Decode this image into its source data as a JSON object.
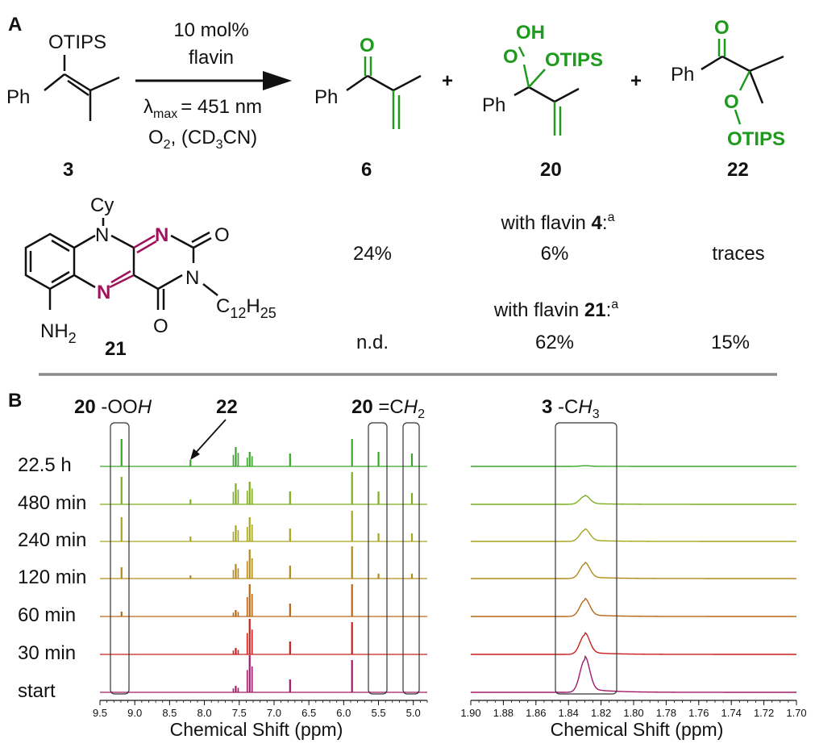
{
  "colors": {
    "green": "#1f9a1f",
    "purple": "#a0135c",
    "black": "#111111",
    "divider": "#8a8a8a",
    "trace_22_5h": "#3aa52a",
    "trace_480": "#7cae1e",
    "trace_240": "#a7a61c",
    "trace_120": "#b38a1a",
    "trace_60": "#b86616",
    "trace_30": "#c8201e",
    "trace_start": "#a01a6a"
  },
  "panelA": {
    "label": "A",
    "reactant": {
      "otips": "OTIPS",
      "ph": "Ph",
      "number": "3"
    },
    "conditions": {
      "line1": "10 mol%",
      "line2": "flavin",
      "lambda_symbol": "λ",
      "lambda_sub": "max",
      "lambda_value": "= 451 nm",
      "o2": "O",
      "o2_sub": "2",
      "solvent_open": ", (CD",
      "solvent_sub": "3",
      "solvent_close": "CN)"
    },
    "plus1": "+",
    "plus2": "+",
    "product6": {
      "o": "O",
      "ph": "Ph",
      "number": "6"
    },
    "product20": {
      "oh": "OH",
      "o": "O",
      "otips": "OTIPS",
      "ph": "Ph",
      "number": "20"
    },
    "product22": {
      "o_top": "O",
      "ph": "Ph",
      "o": "O",
      "otips": "OTIPS",
      "number": "22"
    },
    "flavin21": {
      "cy": "Cy",
      "n_top": "N",
      "n_ring": "N",
      "n_left": "N",
      "n_imide": "N",
      "o_top": "O",
      "o_bottom": "O",
      "chain": "C",
      "chain_sub1": "12",
      "chain_h": "H",
      "chain_sub2": "25",
      "nh2": "NH",
      "nh2_sub": "2",
      "number": "21"
    },
    "yields": {
      "flavin4_heading_prefix": "with flavin ",
      "flavin4_number": "4",
      "flavin4_heading_suffix": ":",
      "flavin4_sup": "a",
      "flavin4": [
        "24%",
        "6%",
        "traces"
      ],
      "flavin21_heading_prefix": "with flavin ",
      "flavin21_number": "21",
      "flavin21_heading_suffix": ":",
      "flavin21_sup": "a",
      "flavin21": [
        "n.d.",
        "62%",
        "15%"
      ]
    }
  },
  "panelB": {
    "label": "B",
    "annot_20_ooh_num": "20",
    "annot_20_ooh_text": " -OO",
    "annot_20_ooh_h": "H",
    "annot_22": "22",
    "annot_20_ch2_num": "20",
    "annot_20_ch2_text": " =C",
    "annot_20_ch2_h": "H",
    "annot_20_ch2_sub": "2",
    "annot_3_num": "3",
    "annot_3_text": " -C",
    "annot_3_h": "H",
    "annot_3_sub": "3"
  },
  "chart_data": [
    {
      "type": "line",
      "xlabel": "Chemical Shift (ppm)",
      "xlim": [
        9.5,
        4.8
      ],
      "x_ticks": [
        "9.5",
        "9.0",
        "8.5",
        "8.0",
        "7.5",
        "7.0",
        "6.5",
        "6.0",
        "5.5",
        "5.0"
      ],
      "series": [
        {
          "name": "22.5 h",
          "peaks_ppm": [
            9.19,
            8.2,
            7.55,
            7.35,
            6.77,
            5.88,
            5.5,
            5.02
          ]
        },
        {
          "name": "480 min",
          "peaks_ppm": [
            9.19,
            8.2,
            7.55,
            7.35,
            6.77,
            5.88,
            5.5,
            5.02
          ]
        },
        {
          "name": "240 min",
          "peaks_ppm": [
            9.19,
            8.2,
            7.55,
            7.35,
            6.77,
            5.88,
            5.5,
            5.02
          ]
        },
        {
          "name": "120 min",
          "peaks_ppm": [
            9.19,
            8.2,
            7.55,
            7.35,
            6.77,
            5.88,
            5.5,
            5.02
          ]
        },
        {
          "name": "60 min",
          "peaks_ppm": [
            9.19,
            7.55,
            7.35,
            6.77,
            5.88
          ]
        },
        {
          "name": "30 min",
          "peaks_ppm": [
            7.55,
            7.35,
            6.77,
            5.88
          ]
        },
        {
          "name": "start",
          "peaks_ppm": [
            7.55,
            7.35,
            6.77,
            5.88
          ]
        }
      ]
    },
    {
      "type": "line",
      "xlabel": "Chemical Shift (ppm)",
      "xlim": [
        1.9,
        1.7
      ],
      "x_ticks": [
        "1.90",
        "1.88",
        "1.86",
        "1.84",
        "1.82",
        "1.80",
        "1.78",
        "1.76",
        "1.74",
        "1.72",
        "1.70"
      ],
      "series": [
        {
          "name": "22.5 h",
          "peak_ppm": 1.83,
          "height": 0.02
        },
        {
          "name": "480 min",
          "peak_ppm": 1.83,
          "height": 0.25
        },
        {
          "name": "240 min",
          "peak_ppm": 1.83,
          "height": 0.35
        },
        {
          "name": "120 min",
          "peak_ppm": 1.83,
          "height": 0.45
        },
        {
          "name": "60 min",
          "peak_ppm": 1.83,
          "height": 0.5
        },
        {
          "name": "30 min",
          "peak_ppm": 1.83,
          "height": 0.6
        },
        {
          "name": "start",
          "peak_ppm": 1.83,
          "height": 1.0
        }
      ]
    }
  ]
}
